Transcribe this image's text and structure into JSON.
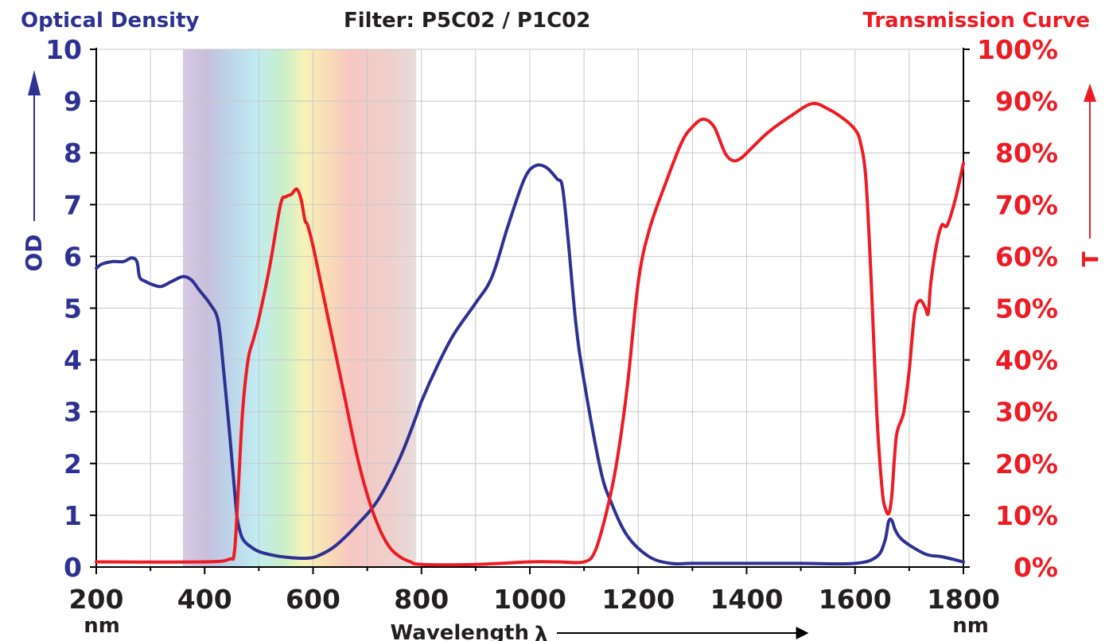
{
  "chart_data": {
    "type": "line",
    "title": "Filter: P5C02 / P1C02",
    "left_title": "Optical Density",
    "right_title": "Transmission Curve",
    "xlabel": "Wavelength",
    "xlabel_symbol": "λ",
    "x_unit": "nm",
    "ylabel_left": "OD",
    "ylabel_right": "T",
    "xlim": [
      200,
      1800
    ],
    "ylim_left": [
      0,
      10
    ],
    "ylim_right": [
      0,
      100
    ],
    "x_ticks": [
      "200",
      "400",
      "600",
      "800",
      "1000",
      "1200",
      "1400",
      "1600",
      "1800"
    ],
    "y_left_ticks": [
      "0",
      "1",
      "2",
      "3",
      "4",
      "5",
      "6",
      "7",
      "8",
      "9",
      "10"
    ],
    "y_right_ticks": [
      "0%",
      "10%",
      "20%",
      "30%",
      "40%",
      "50%",
      "60%",
      "70%",
      "80%",
      "90%",
      "100%"
    ],
    "grid": true,
    "visible_band_shading_nm": [
      360,
      790
    ],
    "colors": {
      "od": "#2e3192",
      "transmission": "#ed1c24",
      "title": "#231f20",
      "grid": "#c8c8c8"
    },
    "series": [
      {
        "axis": "left",
        "color": "#2e3192",
        "x": [
          200,
          210,
          230,
          250,
          265,
          275,
          280,
          290,
          305,
          320,
          340,
          360,
          375,
          390,
          410,
          425,
          435,
          445,
          455,
          460,
          465,
          470,
          480,
          500,
          530,
          560,
          590,
          610,
          640,
          680,
          720,
          760,
          790,
          800,
          830,
          860,
          900,
          930,
          960,
          990,
          1010,
          1030,
          1050,
          1060,
          1070,
          1085,
          1100,
          1130,
          1150,
          1180,
          1220,
          1260,
          1300,
          1400,
          1500,
          1600,
          1640,
          1655,
          1662,
          1668,
          1675,
          1690,
          1730,
          1760,
          1800
        ],
        "y": [
          5.77,
          5.85,
          5.9,
          5.9,
          5.97,
          5.9,
          5.6,
          5.52,
          5.45,
          5.42,
          5.52,
          5.61,
          5.55,
          5.35,
          5.08,
          4.75,
          3.8,
          2.7,
          1.5,
          0.95,
          0.7,
          0.55,
          0.43,
          0.3,
          0.22,
          0.18,
          0.17,
          0.22,
          0.4,
          0.8,
          1.3,
          2.1,
          2.9,
          3.2,
          3.9,
          4.5,
          5.1,
          5.6,
          6.6,
          7.5,
          7.75,
          7.72,
          7.5,
          7.35,
          6.4,
          4.7,
          3.6,
          1.9,
          1.25,
          0.6,
          0.2,
          0.07,
          0.07,
          0.07,
          0.07,
          0.07,
          0.2,
          0.5,
          0.88,
          0.9,
          0.7,
          0.5,
          0.25,
          0.2,
          0.1
        ]
      },
      {
        "axis": "right",
        "color": "#ed1c24",
        "x": [
          200,
          400,
          445,
          455,
          462,
          470,
          480,
          490,
          500,
          520,
          540,
          550,
          560,
          570,
          578,
          585,
          590,
          600,
          620,
          640,
          660,
          680,
          700,
          720,
          740,
          760,
          780,
          800,
          900,
          1000,
          1050,
          1100,
          1120,
          1140,
          1160,
          1180,
          1200,
          1220,
          1250,
          1280,
          1300,
          1320,
          1340,
          1360,
          1375,
          1390,
          1410,
          1440,
          1480,
          1520,
          1550,
          1580,
          1600,
          1610,
          1620,
          1630,
          1640,
          1650,
          1657,
          1663,
          1668,
          1672,
          1676,
          1680,
          1690,
          1700,
          1710,
          1720,
          1730,
          1735,
          1740,
          1750,
          1760,
          1770,
          1785,
          1800
        ],
        "y": [
          1,
          1,
          1.5,
          3,
          15,
          30,
          40,
          44,
          48,
          58,
          70,
          71.5,
          72,
          73,
          71,
          67,
          66,
          62,
          52,
          42,
          32,
          22,
          14,
          8,
          4,
          2,
          1,
          0.5,
          0.5,
          1,
          1,
          1,
          3,
          10,
          20,
          35,
          55,
          65,
          74,
          82,
          85,
          86.5,
          85,
          80,
          78.5,
          79,
          81,
          84,
          87,
          89.5,
          88.5,
          86.5,
          84.5,
          82,
          75,
          55,
          30,
          15,
          11,
          10.5,
          14,
          20,
          25,
          27,
          30,
          38,
          49,
          51.5,
          50,
          49,
          55,
          62,
          66,
          66,
          71,
          78
        ]
      }
    ]
  }
}
